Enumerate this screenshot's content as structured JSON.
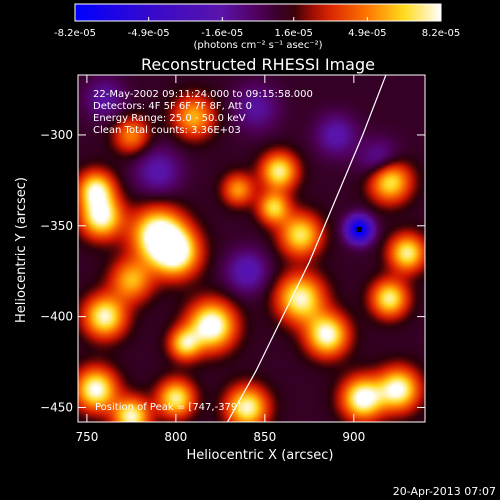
{
  "chart_data": {
    "type": "heatmap",
    "title": "Reconstructed RHESSI Image",
    "xlabel": "Heliocentric X (arcsec)",
    "ylabel": "Heliocentric Y (arcsec)",
    "xlim": [
      745,
      940
    ],
    "ylim": [
      -458,
      -267
    ],
    "x_ticks": [
      750,
      800,
      850,
      900
    ],
    "y_ticks": [
      -450,
      -400,
      -350,
      -300
    ],
    "colormap": "red-temperature",
    "colorbar": {
      "min": -8.2e-05,
      "max": 8.2e-05,
      "tick_values": [
        -8.2e-05,
        -4.9e-05,
        -1.6e-05,
        1.6e-05,
        4.9e-05,
        8.2e-05
      ],
      "tick_labels": [
        "-8.2e-05",
        "-4.9e-05",
        "-1.6e-05",
        "1.6e-05",
        "4.9e-05",
        "8.2e-05"
      ],
      "units_label": "(photons cm⁻² s⁻¹ asec⁻²)"
    },
    "info_lines": [
      "22-May-2002 09:11:24.000 to 09:15:58.000",
      "Detectors: 4F 5F 6F 7F 8F, Att 0",
      "Energy Range: 25.0 - 50.0 keV",
      "Clean    Total counts: 3.36E+03"
    ],
    "peak_label": "Position of Peak = [747,-379]",
    "peak_position": [
      747,
      -379
    ],
    "limb_curve": [
      [
        829,
        -458
      ],
      [
        845,
        -430
      ],
      [
        860,
        -400
      ],
      [
        875,
        -370
      ],
      [
        890,
        -335
      ],
      [
        905,
        -300
      ],
      [
        918,
        -267
      ]
    ],
    "min_marker": [
      903,
      -352
    ],
    "blobs": [
      {
        "x": 758,
        "y": -345,
        "amp": 0.9,
        "s": 8
      },
      {
        "x": 755,
        "y": -330,
        "amp": 0.8,
        "s": 7
      },
      {
        "x": 790,
        "y": -355,
        "amp": 1.0,
        "s": 10
      },
      {
        "x": 800,
        "y": -365,
        "amp": 0.9,
        "s": 9
      },
      {
        "x": 775,
        "y": -380,
        "amp": 0.6,
        "s": 8
      },
      {
        "x": 760,
        "y": -400,
        "amp": 0.85,
        "s": 8
      },
      {
        "x": 820,
        "y": -405,
        "amp": 1.0,
        "s": 9
      },
      {
        "x": 805,
        "y": -415,
        "amp": 0.7,
        "s": 6
      },
      {
        "x": 858,
        "y": -320,
        "amp": 0.8,
        "s": 7
      },
      {
        "x": 855,
        "y": -340,
        "amp": 0.7,
        "s": 6
      },
      {
        "x": 870,
        "y": -355,
        "amp": 0.75,
        "s": 8
      },
      {
        "x": 870,
        "y": -390,
        "amp": 0.85,
        "s": 9
      },
      {
        "x": 885,
        "y": -410,
        "amp": 0.9,
        "s": 8
      },
      {
        "x": 920,
        "y": -325,
        "amp": 0.85,
        "s": 8
      },
      {
        "x": 930,
        "y": -365,
        "amp": 0.8,
        "s": 7
      },
      {
        "x": 920,
        "y": -390,
        "amp": 0.8,
        "s": 7
      },
      {
        "x": 905,
        "y": -445,
        "amp": 0.95,
        "s": 8
      },
      {
        "x": 925,
        "y": -440,
        "amp": 0.9,
        "s": 8
      },
      {
        "x": 755,
        "y": -440,
        "amp": 0.9,
        "s": 8
      },
      {
        "x": 775,
        "y": -455,
        "amp": 0.85,
        "s": 7
      },
      {
        "x": 800,
        "y": -445,
        "amp": 0.8,
        "s": 7
      },
      {
        "x": 840,
        "y": -450,
        "amp": 0.85,
        "s": 8
      },
      {
        "x": 810,
        "y": -290,
        "amp": 0.6,
        "s": 8
      },
      {
        "x": 775,
        "y": -300,
        "amp": 0.5,
        "s": 7
      },
      {
        "x": 835,
        "y": -330,
        "amp": 0.55,
        "s": 6
      },
      {
        "x": 903,
        "y": -352,
        "amp": -1.2,
        "s": 5
      },
      {
        "x": 915,
        "y": -315,
        "amp": -0.4,
        "s": 8
      },
      {
        "x": 790,
        "y": -320,
        "amp": -0.35,
        "s": 9
      },
      {
        "x": 840,
        "y": -375,
        "amp": -0.4,
        "s": 8
      },
      {
        "x": 890,
        "y": -300,
        "amp": -0.35,
        "s": 8
      },
      {
        "x": 760,
        "y": -280,
        "amp": -0.3,
        "s": 8
      },
      {
        "x": 845,
        "y": -285,
        "amp": -0.3,
        "s": 9
      }
    ],
    "background_level": 0.12
  },
  "footer": {
    "timestamp": "20-Apr-2013 07:07"
  }
}
